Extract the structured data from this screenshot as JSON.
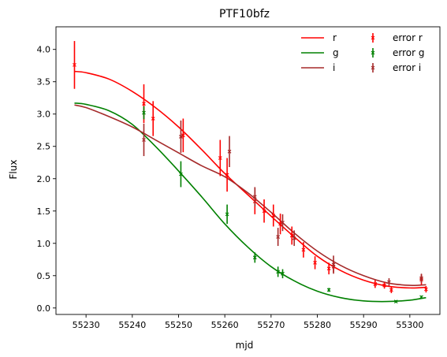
{
  "chart_data": {
    "type": "line",
    "title": "PTF10bfz",
    "xlabel": "mjd",
    "ylabel": "Flux",
    "xlim": [
      55223.5,
      55306.5
    ],
    "ylim": [
      -0.1,
      4.35
    ],
    "xticks": [
      55230,
      55240,
      55250,
      55260,
      55270,
      55280,
      55290,
      55300
    ],
    "yticks": [
      0.0,
      0.5,
      1.0,
      1.5,
      2.0,
      2.5,
      3.0,
      3.5,
      4.0
    ],
    "legend_position": "top-right",
    "series": [
      {
        "name": "r",
        "error_name": "error r",
        "color": "#ff0000",
        "curve": [
          [
            55227.5,
            3.66
          ],
          [
            55230,
            3.64
          ],
          [
            55235,
            3.54
          ],
          [
            55240,
            3.35
          ],
          [
            55245,
            3.1
          ],
          [
            55250,
            2.8
          ],
          [
            55255,
            2.45
          ],
          [
            55260,
            2.08
          ],
          [
            55265,
            1.75
          ],
          [
            55270,
            1.42
          ],
          [
            55275,
            1.1
          ],
          [
            55280,
            0.8
          ],
          [
            55285,
            0.58
          ],
          [
            55290,
            0.43
          ],
          [
            55295,
            0.34
          ],
          [
            55300,
            0.31
          ],
          [
            55303.5,
            0.32
          ]
        ],
        "points": [
          [
            55227.5,
            3.76,
            0.37
          ],
          [
            55242.5,
            3.16,
            0.3
          ],
          [
            55244.5,
            2.93,
            0.27
          ],
          [
            55251,
            2.67,
            0.26
          ],
          [
            55259,
            2.32,
            0.28
          ],
          [
            55260.5,
            2.06,
            0.26
          ],
          [
            55266.5,
            1.65,
            0.2
          ],
          [
            55268.5,
            1.5,
            0.18
          ],
          [
            55270.5,
            1.43,
            0.17
          ],
          [
            55272,
            1.3,
            0.16
          ],
          [
            55274.5,
            1.12,
            0.14
          ],
          [
            55277,
            0.9,
            0.12
          ],
          [
            55279.5,
            0.7,
            0.1
          ],
          [
            55282.5,
            0.61,
            0.09
          ],
          [
            55283.5,
            0.64,
            0.09
          ],
          [
            55292.5,
            0.37,
            0.06
          ],
          [
            55294.5,
            0.35,
            0.05
          ],
          [
            55296,
            0.28,
            0.05
          ],
          [
            55302.5,
            0.44,
            0.08
          ],
          [
            55303.5,
            0.29,
            0.05
          ]
        ]
      },
      {
        "name": "g",
        "error_name": "error g",
        "color": "#008000",
        "curve": [
          [
            55227.5,
            3.17
          ],
          [
            55230,
            3.15
          ],
          [
            55235,
            3.05
          ],
          [
            55240,
            2.84
          ],
          [
            55245,
            2.5
          ],
          [
            55250,
            2.12
          ],
          [
            55255,
            1.72
          ],
          [
            55260,
            1.3
          ],
          [
            55265,
            0.94
          ],
          [
            55270,
            0.64
          ],
          [
            55275,
            0.42
          ],
          [
            55280,
            0.26
          ],
          [
            55285,
            0.16
          ],
          [
            55290,
            0.11
          ],
          [
            55295,
            0.1
          ],
          [
            55300,
            0.12
          ],
          [
            55303.5,
            0.16
          ]
        ],
        "points": [
          [
            55242.5,
            3.02,
            0.1
          ],
          [
            55250.5,
            2.07,
            0.2
          ],
          [
            55260.5,
            1.45,
            0.15
          ],
          [
            55266.5,
            0.78,
            0.08
          ],
          [
            55271.5,
            0.56,
            0.08
          ],
          [
            55272.5,
            0.53,
            0.07
          ],
          [
            55282.5,
            0.28,
            0.03
          ],
          [
            55297,
            0.1,
            0.02
          ],
          [
            55302.5,
            0.17,
            0.02
          ]
        ]
      },
      {
        "name": "i",
        "error_name": "error i",
        "color": "#a52a2a",
        "curve": [
          [
            55227.5,
            3.14
          ],
          [
            55230,
            3.1
          ],
          [
            55235,
            2.96
          ],
          [
            55240,
            2.8
          ],
          [
            55245,
            2.6
          ],
          [
            55250,
            2.4
          ],
          [
            55255,
            2.2
          ],
          [
            55260,
            2.03
          ],
          [
            55265,
            1.78
          ],
          [
            55270,
            1.48
          ],
          [
            55275,
            1.16
          ],
          [
            55280,
            0.88
          ],
          [
            55285,
            0.66
          ],
          [
            55290,
            0.5
          ],
          [
            55295,
            0.39
          ],
          [
            55300,
            0.35
          ],
          [
            55303.5,
            0.36
          ]
        ],
        "points": [
          [
            55242.5,
            2.6,
            0.25
          ],
          [
            55250.5,
            2.65,
            0.25
          ],
          [
            55261,
            2.42,
            0.24
          ],
          [
            55266.5,
            1.72,
            0.15
          ],
          [
            55271.5,
            1.1,
            0.14
          ],
          [
            55272.5,
            1.32,
            0.13
          ],
          [
            55275,
            1.08,
            0.12
          ],
          [
            55283.5,
            0.67,
            0.14
          ],
          [
            55295.5,
            0.4,
            0.06
          ],
          [
            55302.5,
            0.46,
            0.07
          ]
        ]
      }
    ]
  }
}
